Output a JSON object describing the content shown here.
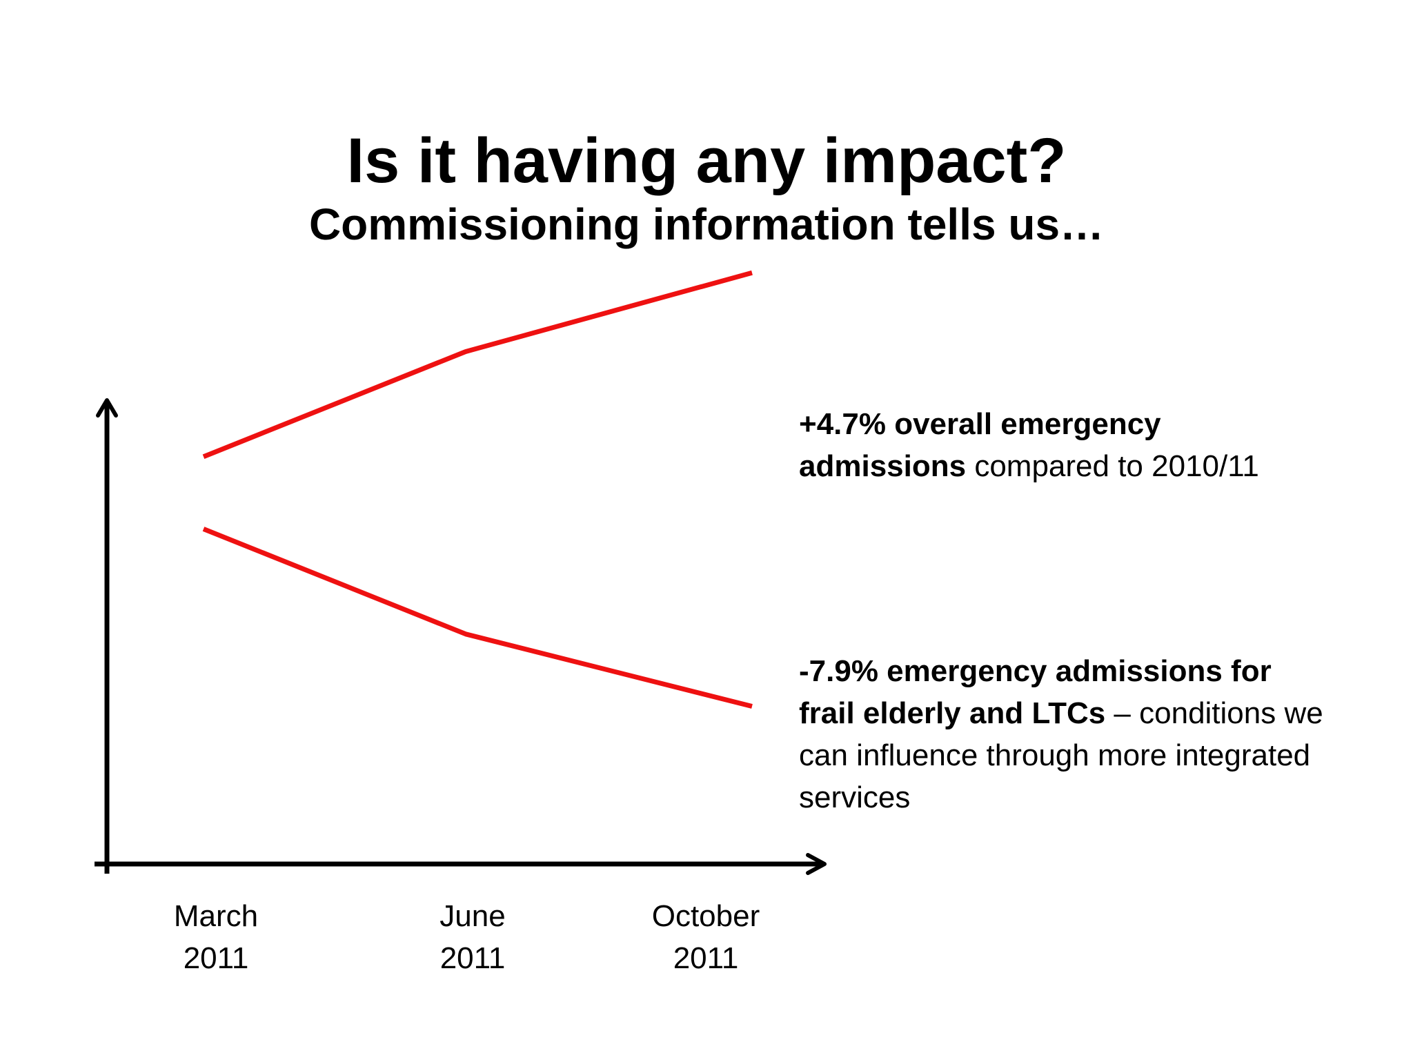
{
  "slide": {
    "title": "Is it having any impact?",
    "subtitle": "Commissioning information tells us…"
  },
  "annotations": {
    "upper": {
      "bold": "+4.7% overall emergency admissions",
      "rest": " compared to 2010/11"
    },
    "lower": {
      "bold": "-7.9% emergency admissions for frail elderly and LTCs",
      "rest": " – conditions we can influence through more integrated services"
    }
  },
  "chart_data": {
    "type": "line",
    "title": "",
    "xlabel": "",
    "ylabel": "",
    "categories": [
      [
        "March",
        "2011"
      ],
      [
        "June",
        "2011"
      ],
      [
        "October",
        "2011"
      ]
    ],
    "y_axis_labeled": false,
    "ylim": [
      0,
      100
    ],
    "series": [
      {
        "values": [
          62,
          78,
          90
        ],
        "color": "#ee1111"
      },
      {
        "values": [
          51,
          35,
          24
        ],
        "color": "#ee1111"
      }
    ]
  }
}
